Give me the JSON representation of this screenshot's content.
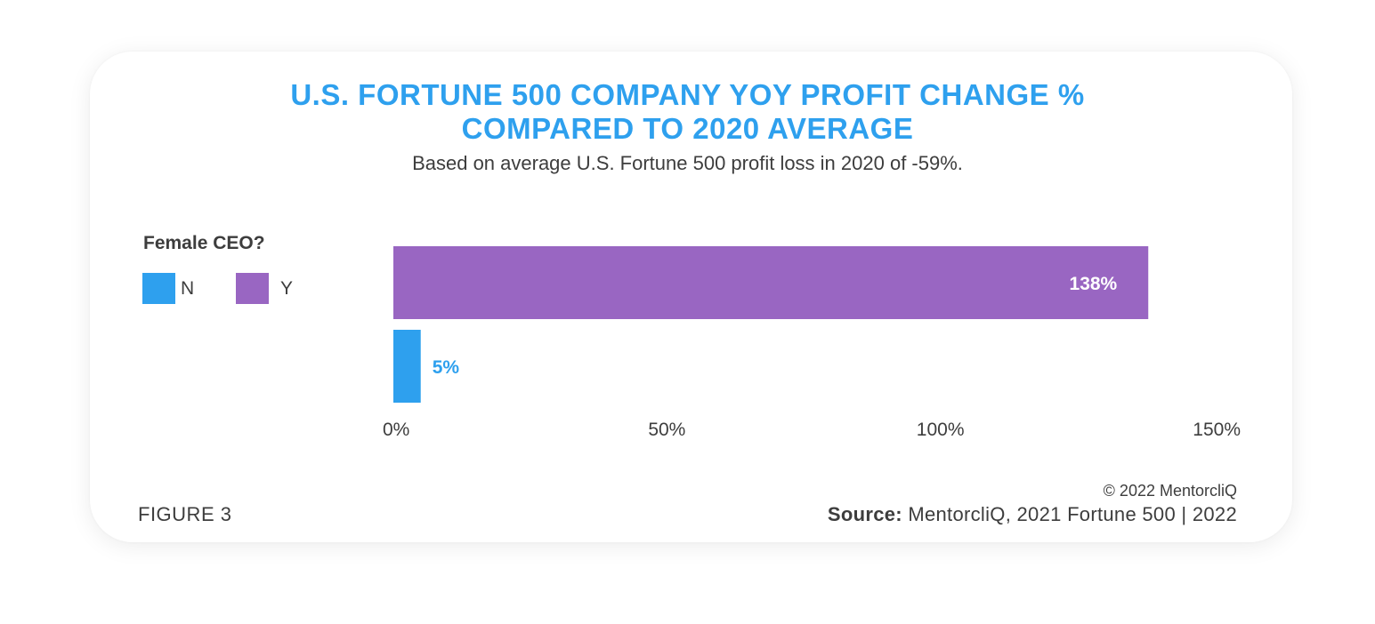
{
  "card": {
    "title_line1": "U.S. FORTUNE 500 COMPANY YOY PROFIT CHANGE %",
    "title_line2": "COMPARED TO 2020 AVERAGE",
    "subtitle": "Based on average U.S. Fortune 500 profit loss in 2020 of -59%.",
    "figure_label": "FIGURE 3",
    "copyright": "© 2022 MentorcliQ",
    "source_label": "Source:",
    "source_text": " MentorcliQ, 2021 Fortune 500 | 2022"
  },
  "legend": {
    "title": "Female CEO?",
    "items": [
      {
        "label": "N",
        "color": "#2ea0ee"
      },
      {
        "label": "Y",
        "color": "#9966c2"
      }
    ]
  },
  "chart_data": {
    "type": "bar",
    "orientation": "horizontal",
    "title": "U.S. FORTUNE 500 COMPANY YOY PROFIT CHANGE % COMPARED TO 2020 AVERAGE",
    "subtitle": "Based on average U.S. Fortune 500 profit loss in 2020 of -59%.",
    "legend_title": "Female CEO?",
    "legend_position": "top-left",
    "categories": [
      "Y",
      "N"
    ],
    "values": [
      138,
      5
    ],
    "data_labels": [
      "138%",
      "5%"
    ],
    "colors": [
      "#9966c2",
      "#2ea0ee"
    ],
    "xlim": [
      0,
      150
    ],
    "x_ticks": [
      0,
      50,
      100,
      150
    ],
    "x_tick_labels": [
      "0%",
      "50%",
      "100%",
      "150%"
    ],
    "grid": false
  }
}
